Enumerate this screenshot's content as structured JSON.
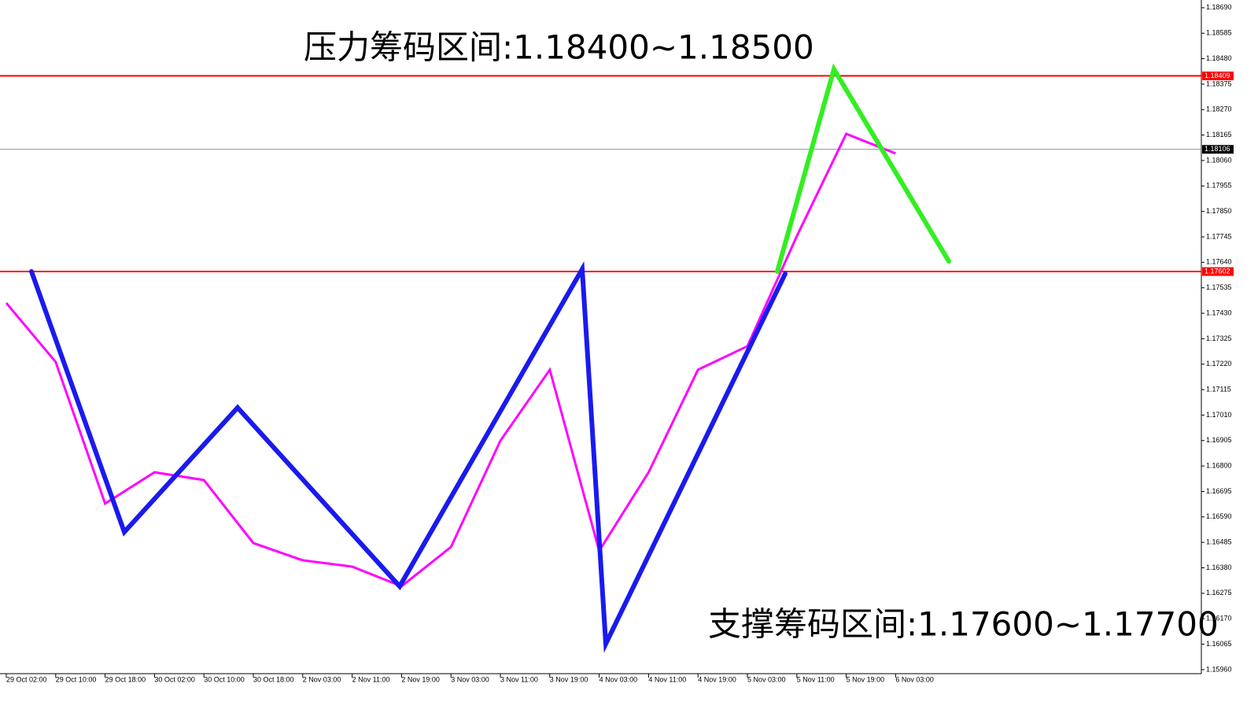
{
  "chart_data": {
    "type": "line",
    "annotations": [
      "压力筹码区间:1.18400~1.18500",
      "支撑筹码区间:1.17600~1.17700"
    ],
    "categories": [
      "29 Oct 02:00",
      "29 Oct 10:00",
      "29 Oct 18:00",
      "30 Oct 02:00",
      "30 Oct 10:00",
      "30 Oct 18:00",
      "2 Nov 03:00",
      "2 Nov 11:00",
      "2 Nov 19:00",
      "3 Nov 03:00",
      "3 Nov 11:00",
      "3 Nov 19:00",
      "4 Nov 03:00",
      "4 Nov 11:00",
      "4 Nov 19:00",
      "5 Nov 03:00",
      "5 Nov 11:00",
      "5 Nov 19:00",
      "6 Nov 03:00"
    ],
    "series": [
      {
        "color": "#ff00ff",
        "values": [
          1.17472,
          1.17229,
          1.16645,
          1.16774,
          1.16742,
          1.16482,
          1.16411,
          1.16385,
          1.16304,
          1.16466,
          1.16904,
          1.17197,
          1.1645,
          1.16774,
          1.17197,
          1.17294,
          1.17748,
          1.1817,
          1.18089
        ]
      }
    ],
    "ylim": [
      1.15898,
      1.18722
    ],
    "yticks": [
      {
        "value": 1.1869,
        "label": "1.18690"
      },
      1.18585,
      {
        "value": 1.1848,
        "label": "1.18480"
      },
      1.18375,
      {
        "value": 1.1827,
        "label": "1.18270"
      },
      1.18165,
      {
        "value": 1.1806,
        "label": "1.18060"
      },
      1.17955,
      {
        "value": 1.1785,
        "label": "1.17850"
      },
      1.17745,
      {
        "value": 1.1764,
        "label": "1.17640"
      },
      1.17535,
      {
        "value": 1.1743,
        "label": "1.17430"
      },
      1.17325,
      {
        "value": 1.1722,
        "label": "1.17220"
      },
      1.17115,
      {
        "value": 1.1701,
        "label": "1.17010"
      },
      1.16905,
      {
        "value": 1.168,
        "label": "1.16800"
      },
      1.16695,
      {
        "value": 1.1659,
        "label": "1.16590"
      },
      1.16485,
      {
        "value": 1.1638,
        "label": "1.16380"
      },
      1.16275,
      {
        "value": 1.1617,
        "label": "1.16170"
      },
      1.16065,
      {
        "value": 1.1596,
        "label": "1.15960"
      }
    ],
    "hlines": [
      {
        "value": 1.18409,
        "color": "#ff0000"
      },
      {
        "value": 1.17602,
        "color": "#ff0000"
      },
      {
        "value": 1.18106,
        "color": "#7f8fa0"
      }
    ]
  }
}
